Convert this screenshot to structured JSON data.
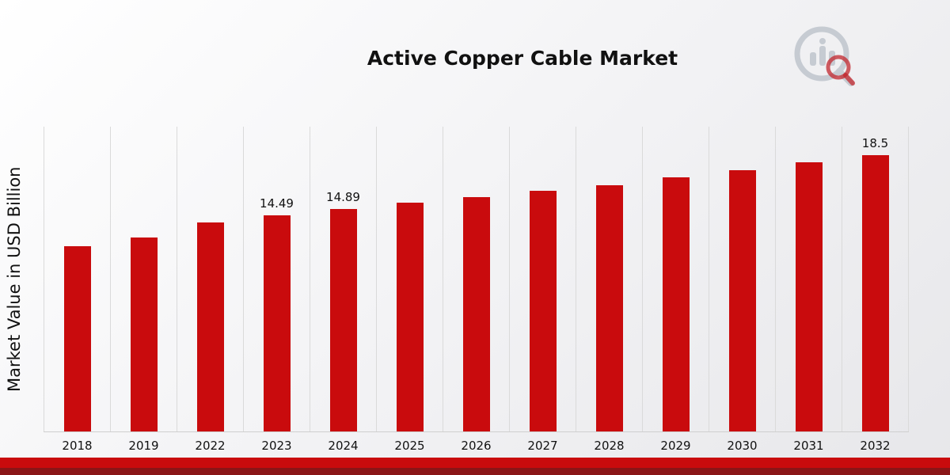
{
  "chart_data": {
    "type": "bar",
    "title": "Active Copper Cable Market",
    "ylabel": "Market Value in USD Billion",
    "xlabel": "",
    "categories": [
      "2018",
      "2019",
      "2022",
      "2023",
      "2024",
      "2025",
      "2026",
      "2027",
      "2028",
      "2029",
      "2030",
      "2031",
      "2032"
    ],
    "values": [
      12.4,
      13.0,
      14.0,
      14.49,
      14.89,
      15.3,
      15.7,
      16.1,
      16.5,
      17.0,
      17.5,
      18.0,
      18.5
    ],
    "data_labels": {
      "2023": "14.49",
      "2024": "14.89",
      "2032": "18.5"
    },
    "ylim": [
      0,
      20.4
    ],
    "bar_color": "#c90b0d",
    "grid": "vertical-only",
    "legend": "none"
  },
  "branding": {
    "logo_name": "market-research-magnifier-logo",
    "logo_gray": "#c6cbd2",
    "logo_red": "#c2272d"
  },
  "footer": {
    "ribbon_top_color": "#c90b0d",
    "ribbon_bottom_color": "#8a1517"
  }
}
